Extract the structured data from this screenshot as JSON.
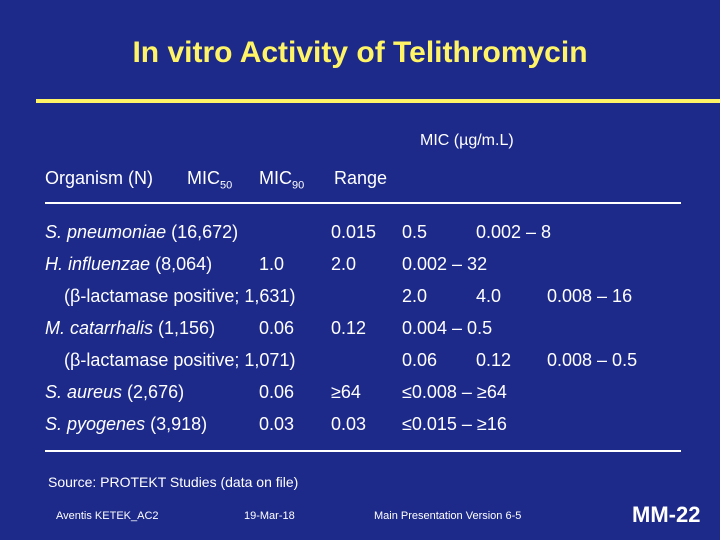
{
  "title": "In vitro Activity of Telithromycin",
  "mic_header": "MIC (µg/m.L)",
  "columns": {
    "organism": "Organism (N)",
    "mic50": "MIC",
    "mic50_sub": "50",
    "mic90": "MIC",
    "mic90_sub": "90",
    "range": "Range"
  },
  "rows": [
    {
      "name": "S. pneumoniae",
      "n": " (16,672)",
      "mic50": "0.015",
      "mic90": "0.5",
      "range": "0.002 – 8"
    },
    {
      "name": "H. influenzae",
      "n": " (8,064)",
      "mic50": "1.0",
      "mic90": "2.0",
      "range": "0.002 – 32"
    },
    {
      "name": "",
      "n": "(β-lactamase positive; 1,631)",
      "mic50": "2.0",
      "mic90": "4.0",
      "range": "0.008 – 16"
    },
    {
      "name": "M. catarrhalis",
      "n": " (1,156)",
      "mic50": "0.06",
      "mic90": "0.12",
      "range": "0.004 – 0.5"
    },
    {
      "name": "",
      "n": "(β-lactamase positive; 1,071)",
      "mic50": "0.06",
      "mic90": "0.12",
      "range": "0.008 – 0.5"
    },
    {
      "name": "S. aureus",
      "n": " (2,676)",
      "mic50": "0.06",
      "mic90": "≥64",
      "range": "≤0.008 – ≥64"
    },
    {
      "name": "S. pyogenes",
      "n": " (3,918)",
      "mic50": "0.03",
      "mic90": "0.03",
      "range": "≤0.015 – ≥16"
    }
  ],
  "source_label": "Source: ",
  "source_text": "PROTEKT Studies (data on file)",
  "footer": {
    "left": "Aventis KETEK_AC2",
    "date": "19-Mar-18",
    "version": "Main Presentation Version 6-5",
    "slide": "MM-22"
  },
  "colors": {
    "background": "#1d2a8a",
    "title": "#fff466",
    "text": "#ffffff"
  }
}
